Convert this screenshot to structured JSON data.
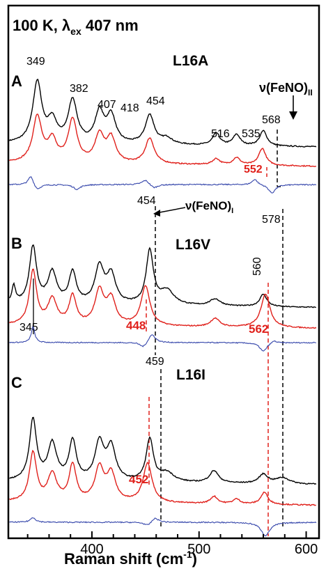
{
  "header": {
    "condition": "100 K, λ",
    "sub": "ex",
    "tail": " 407 nm"
  },
  "xaxis": {
    "label": "Raman shift (cm",
    "sup": "-1",
    "close": ")",
    "ticks": [
      400,
      500,
      600
    ],
    "range": [
      322,
      612
    ]
  },
  "colors": {
    "black": "#000000",
    "red": "#e0201b",
    "blue": "#3344aa",
    "dashed_black": "#000000",
    "dashed_red": "#e0201b"
  },
  "panels": [
    {
      "letter": "A",
      "name": "L16A",
      "black_peaks": [
        "349",
        "382",
        "407",
        "418",
        "454",
        "516",
        "535",
        "568"
      ],
      "red_peaks": [
        "552"
      ],
      "annotation": "ν(FeNO)",
      "annotation_sub": "II"
    },
    {
      "letter": "B",
      "name": "L16V",
      "black_peaks": [
        "454",
        "560",
        "578",
        "345"
      ],
      "red_peaks": [
        "448",
        "562"
      ],
      "annotation": "ν(FeNO)",
      "annotation_sub": "I"
    },
    {
      "letter": "C",
      "name": "L16I",
      "black_peaks": [
        "459"
      ],
      "red_peaks": [
        "452"
      ]
    }
  ],
  "chart_data": {
    "type": "line",
    "title": "100 K, λex 407 nm",
    "xlabel": "Raman shift (cm-1)",
    "ylabel": "",
    "xlim": [
      322,
      612
    ],
    "xticks": [
      400,
      500,
      600
    ],
    "grid": false,
    "series": [
      {
        "panel": "A",
        "color": "#000000",
        "offset": 0.62,
        "peaks": [
          [
            349,
            1.0,
            5
          ],
          [
            363,
            0.35,
            5
          ],
          [
            382,
            0.7,
            5
          ],
          [
            407,
            0.5,
            5
          ],
          [
            418,
            0.45,
            5
          ],
          [
            454,
            0.48,
            5
          ],
          [
            470,
            0.1,
            6
          ],
          [
            516,
            0.2,
            4
          ],
          [
            535,
            0.18,
            4
          ],
          [
            560,
            0.25,
            4
          ]
        ]
      },
      {
        "panel": "A",
        "color": "#e0201b",
        "offset": 0.3,
        "peaks": [
          [
            349,
            0.75,
            5
          ],
          [
            363,
            0.35,
            5
          ],
          [
            382,
            0.7,
            5
          ],
          [
            407,
            0.45,
            5
          ],
          [
            418,
            0.4,
            5
          ],
          [
            454,
            0.42,
            5
          ],
          [
            516,
            0.1,
            4
          ],
          [
            535,
            0.12,
            4
          ],
          [
            559,
            0.28,
            4
          ]
        ]
      },
      {
        "panel": "A",
        "color": "#3344aa",
        "offset": 0.0,
        "peaks": [
          [
            343,
            0.1,
            3
          ],
          [
            349,
            -0.06,
            4
          ],
          [
            386,
            -0.05,
            4
          ],
          [
            450,
            0.05,
            4
          ],
          [
            458,
            -0.04,
            4
          ],
          [
            552,
            0.06,
            3
          ],
          [
            568,
            -0.09,
            4
          ]
        ]
      },
      {
        "panel": "B",
        "color": "#000000",
        "offset": 0.62,
        "peaks": [
          [
            327,
            0.3,
            2
          ],
          [
            345,
            1.0,
            4
          ],
          [
            363,
            0.55,
            5
          ],
          [
            382,
            0.55,
            4
          ],
          [
            407,
            0.65,
            5
          ],
          [
            418,
            0.5,
            5
          ],
          [
            454,
            0.95,
            4
          ],
          [
            470,
            0.25,
            8
          ],
          [
            515,
            0.12,
            6
          ],
          [
            560,
            0.22,
            4
          ]
        ]
      },
      {
        "panel": "B",
        "color": "#e0201b",
        "offset": 0.25,
        "peaks": [
          [
            345,
            0.95,
            4
          ],
          [
            363,
            0.45,
            5
          ],
          [
            382,
            0.5,
            4
          ],
          [
            407,
            0.6,
            5
          ],
          [
            418,
            0.45,
            5
          ],
          [
            450,
            0.7,
            5
          ],
          [
            515,
            0.15,
            5
          ],
          [
            562,
            0.6,
            5
          ]
        ]
      },
      {
        "panel": "B",
        "color": "#3344aa",
        "offset": 0.0,
        "peaks": [
          [
            345,
            0.18,
            2
          ],
          [
            448,
            -0.06,
            4
          ],
          [
            456,
            0.1,
            4
          ],
          [
            560,
            -0.1,
            4
          ],
          [
            570,
            0.03,
            3
          ]
        ]
      },
      {
        "panel": "C",
        "color": "#000000",
        "offset": 0.62,
        "peaks": [
          [
            345,
            1.0,
            4
          ],
          [
            363,
            0.6,
            5
          ],
          [
            382,
            0.65,
            4
          ],
          [
            407,
            0.62,
            5
          ],
          [
            418,
            0.55,
            5
          ],
          [
            454,
            0.7,
            4
          ],
          [
            470,
            0.15,
            8
          ],
          [
            514,
            0.2,
            5
          ],
          [
            560,
            0.15,
            5
          ],
          [
            578,
            0.1,
            8
          ]
        ]
      },
      {
        "panel": "C",
        "color": "#e0201b",
        "offset": 0.28,
        "peaks": [
          [
            345,
            0.8,
            4
          ],
          [
            363,
            0.45,
            5
          ],
          [
            382,
            0.6,
            4
          ],
          [
            407,
            0.55,
            5
          ],
          [
            418,
            0.45,
            5
          ],
          [
            452,
            0.65,
            5
          ],
          [
            514,
            0.12,
            4
          ],
          [
            535,
            0.08,
            4
          ],
          [
            561,
            0.2,
            4
          ]
        ]
      },
      {
        "panel": "C",
        "color": "#3344aa",
        "offset": 0.0,
        "peaks": [
          [
            345,
            0.05,
            3
          ],
          [
            452,
            -0.04,
            4
          ],
          [
            459,
            0.05,
            4
          ],
          [
            562,
            -0.14,
            5
          ]
        ]
      }
    ]
  }
}
